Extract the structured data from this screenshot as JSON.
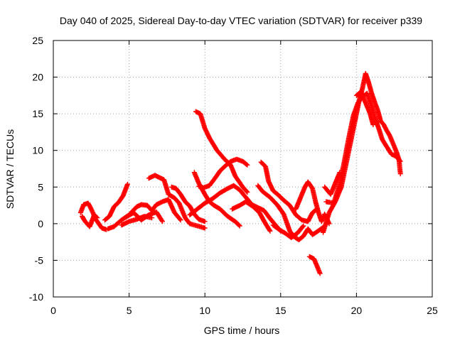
{
  "chart_data": {
    "type": "scatter",
    "title": "Day 040 of 2025, Sidereal Day-to-day VTEC variation (SDTVAR) for receiver p339",
    "xlabel": "GPS time / hours",
    "ylabel": "SDTVAR / TECUs",
    "xlim": [
      0,
      25
    ],
    "ylim": [
      -10,
      25
    ],
    "xticks": [
      "0",
      "5",
      "10",
      "15",
      "20",
      "25"
    ],
    "yticks": [
      "-10",
      "-5",
      "0",
      "5",
      "10",
      "15",
      "20",
      "25"
    ],
    "grid": true,
    "marker": "+",
    "color": "#ff0000",
    "segments": [
      [
        [
          1.8,
          1.5
        ],
        [
          2.0,
          2.6
        ],
        [
          2.3,
          2.8
        ],
        [
          2.5,
          2.0
        ],
        [
          2.8,
          0.6
        ],
        [
          3.0,
          0.0
        ],
        [
          3.2,
          -0.6
        ],
        [
          3.5,
          -0.8
        ]
      ],
      [
        [
          1.9,
          1.0
        ],
        [
          2.1,
          0.3
        ],
        [
          2.4,
          -0.4
        ],
        [
          2.7,
          1.2
        ],
        [
          2.9,
          0.8
        ]
      ],
      [
        [
          3.4,
          0.5
        ],
        [
          3.7,
          1.0
        ],
        [
          4.0,
          2.3
        ],
        [
          4.3,
          2.9
        ],
        [
          4.6,
          3.8
        ],
        [
          4.9,
          5.4
        ]
      ],
      [
        [
          3.6,
          -0.7
        ],
        [
          4.0,
          -0.4
        ],
        [
          4.5,
          0.5
        ],
        [
          5.0,
          1.2
        ],
        [
          5.5,
          2.3
        ],
        [
          5.8,
          2.6
        ],
        [
          6.2,
          2.5
        ],
        [
          6.5,
          1.8
        ],
        [
          6.8,
          2.6
        ],
        [
          7.2,
          3.0
        ],
        [
          7.6,
          3.3
        ],
        [
          8.0,
          1.5
        ],
        [
          8.4,
          0.5
        ]
      ],
      [
        [
          4.8,
          0.9
        ],
        [
          5.3,
          1.5
        ],
        [
          5.8,
          0.5
        ],
        [
          6.3,
          1.2
        ],
        [
          6.8,
          1.6
        ],
        [
          7.2,
          0.3
        ]
      ],
      [
        [
          4.5,
          -0.2
        ],
        [
          5.0,
          0.3
        ],
        [
          5.5,
          0.6
        ],
        [
          6.0,
          1.0
        ],
        [
          6.5,
          0.8
        ]
      ],
      [
        [
          6.3,
          6.2
        ],
        [
          6.7,
          6.6
        ],
        [
          7.0,
          6.3
        ],
        [
          7.3,
          6.0
        ],
        [
          7.6,
          4.0
        ],
        [
          8.0,
          3.5
        ],
        [
          8.3,
          2.8
        ],
        [
          8.7,
          0.8
        ],
        [
          9.0,
          0.0
        ],
        [
          9.5,
          -0.3
        ],
        [
          10.0,
          -0.6
        ]
      ],
      [
        [
          7.8,
          5.0
        ],
        [
          8.1,
          4.8
        ],
        [
          8.4,
          4.0
        ],
        [
          8.7,
          3.0
        ],
        [
          9.0,
          2.4
        ],
        [
          9.3,
          1.3
        ],
        [
          9.6,
          0.6
        ],
        [
          10.0,
          0.3
        ]
      ],
      [
        [
          9.3,
          7.0
        ],
        [
          9.6,
          5.5
        ],
        [
          10.0,
          4.0
        ],
        [
          10.3,
          3.0
        ],
        [
          10.6,
          2.5
        ],
        [
          11.0,
          2.0
        ],
        [
          11.5,
          1.0
        ],
        [
          12.0,
          0.3
        ],
        [
          12.3,
          -0.3
        ]
      ],
      [
        [
          9.4,
          15.3
        ],
        [
          9.7,
          15.0
        ],
        [
          10.0,
          13.0
        ],
        [
          10.3,
          11.7
        ],
        [
          10.8,
          10.0
        ],
        [
          11.3,
          8.8
        ],
        [
          11.7,
          8.0
        ],
        [
          12.0,
          6.5
        ],
        [
          12.5,
          5.0
        ],
        [
          12.8,
          4.3
        ]
      ],
      [
        [
          9.6,
          5.1
        ],
        [
          9.9,
          4.9
        ],
        [
          10.3,
          5.2
        ],
        [
          10.7,
          6.3
        ],
        [
          11.0,
          7.2
        ],
        [
          11.3,
          7.8
        ],
        [
          11.7,
          8.5
        ],
        [
          12.1,
          8.8
        ],
        [
          12.5,
          8.5
        ],
        [
          12.8,
          8.0
        ]
      ],
      [
        [
          9.0,
          1.2
        ],
        [
          9.5,
          2.0
        ],
        [
          10.0,
          2.8
        ],
        [
          10.5,
          3.4
        ],
        [
          11.0,
          4.2
        ],
        [
          11.5,
          4.8
        ],
        [
          11.9,
          5.2
        ],
        [
          12.3,
          4.6
        ],
        [
          12.7,
          3.6
        ],
        [
          13.1,
          2.6
        ],
        [
          13.5,
          2.2
        ],
        [
          13.9,
          1.8
        ],
        [
          14.3,
          0.7
        ],
        [
          14.7,
          -0.3
        ],
        [
          15.0,
          -1.0
        ]
      ],
      [
        [
          11.8,
          2.0
        ],
        [
          12.3,
          2.5
        ],
        [
          12.7,
          3.0
        ],
        [
          13.2,
          2.3
        ],
        [
          13.6,
          1.5
        ],
        [
          14.0,
          0.0
        ],
        [
          14.3,
          -1.0
        ]
      ],
      [
        [
          13.7,
          8.4
        ],
        [
          14.0,
          7.8
        ],
        [
          14.2,
          5.8
        ],
        [
          14.5,
          4.5
        ],
        [
          14.8,
          4.0
        ],
        [
          15.2,
          3.2
        ],
        [
          15.6,
          2.5
        ],
        [
          16.0,
          1.2
        ],
        [
          16.4,
          0.5
        ],
        [
          16.8,
          0.3
        ],
        [
          17.1,
          1.5
        ],
        [
          17.4,
          2.0
        ]
      ],
      [
        [
          13.5,
          5.2
        ],
        [
          13.8,
          4.4
        ],
        [
          14.3,
          3.6
        ],
        [
          14.8,
          2.5
        ],
        [
          15.2,
          1.3
        ],
        [
          15.6,
          -1.0
        ],
        [
          15.9,
          -1.8
        ],
        [
          16.2,
          -2.2
        ],
        [
          16.5,
          -1.7
        ],
        [
          16.8,
          -0.7
        ],
        [
          17.1,
          -1.5
        ],
        [
          17.4,
          -1.1
        ],
        [
          17.8,
          -0.5
        ]
      ],
      [
        [
          14.5,
          -0.2
        ],
        [
          14.9,
          -0.8
        ],
        [
          15.3,
          -1.3
        ],
        [
          15.7,
          -1.9
        ],
        [
          16.1,
          -1.3
        ],
        [
          16.5,
          -0.3
        ]
      ],
      [
        [
          16.0,
          2.0
        ],
        [
          16.3,
          3.5
        ],
        [
          16.6,
          5.0
        ],
        [
          16.8,
          5.7
        ],
        [
          17.1,
          4.8
        ],
        [
          17.3,
          3.0
        ],
        [
          17.5,
          1.5
        ],
        [
          17.7,
          0.3
        ],
        [
          17.9,
          1.3
        ],
        [
          18.2,
          0.0
        ]
      ],
      [
        [
          16.9,
          -4.5
        ],
        [
          17.2,
          -4.8
        ],
        [
          17.4,
          -5.8
        ],
        [
          17.6,
          -6.8
        ]
      ],
      [
        [
          17.8,
          -1.2
        ],
        [
          18.2,
          1.5
        ],
        [
          18.6,
          3.0
        ],
        [
          19.0,
          5.0
        ],
        [
          19.3,
          8.0
        ],
        [
          19.6,
          11.0
        ],
        [
          19.8,
          13.0
        ],
        [
          20.0,
          15.0
        ],
        [
          20.2,
          17.0
        ],
        [
          20.4,
          18.5
        ],
        [
          20.6,
          20.5
        ],
        [
          20.8,
          19.3
        ],
        [
          21.0,
          17.8
        ],
        [
          21.2,
          16.6
        ],
        [
          21.4,
          15.5
        ],
        [
          21.6,
          14.0
        ],
        [
          21.8,
          13.5
        ],
        [
          22.0,
          12.7
        ],
        [
          22.2,
          12.0
        ],
        [
          22.4,
          11.0
        ],
        [
          22.6,
          10.0
        ],
        [
          22.8,
          8.8
        ],
        [
          22.9,
          6.8
        ]
      ],
      [
        [
          18.0,
          3.0
        ],
        [
          18.5,
          2.8
        ],
        [
          18.9,
          5.5
        ],
        [
          19.2,
          8.5
        ],
        [
          19.5,
          11.8
        ],
        [
          19.8,
          14.8
        ],
        [
          20.1,
          16.5
        ],
        [
          20.4,
          17.3
        ],
        [
          20.7,
          17.8
        ],
        [
          21.0,
          16.0
        ],
        [
          21.3,
          14.0
        ],
        [
          21.5,
          12.8
        ],
        [
          21.7,
          11.5
        ],
        [
          22.0,
          10.5
        ],
        [
          22.3,
          9.5
        ],
        [
          22.6,
          9.2
        ],
        [
          22.9,
          8.5
        ]
      ],
      [
        [
          17.9,
          5.0
        ],
        [
          18.3,
          4.0
        ],
        [
          18.6,
          5.5
        ],
        [
          18.9,
          7.0
        ]
      ],
      [
        [
          20.0,
          17.5
        ],
        [
          20.3,
          18.0
        ],
        [
          20.6,
          16.5
        ],
        [
          20.9,
          15.0
        ],
        [
          21.1,
          13.5
        ]
      ]
    ]
  }
}
